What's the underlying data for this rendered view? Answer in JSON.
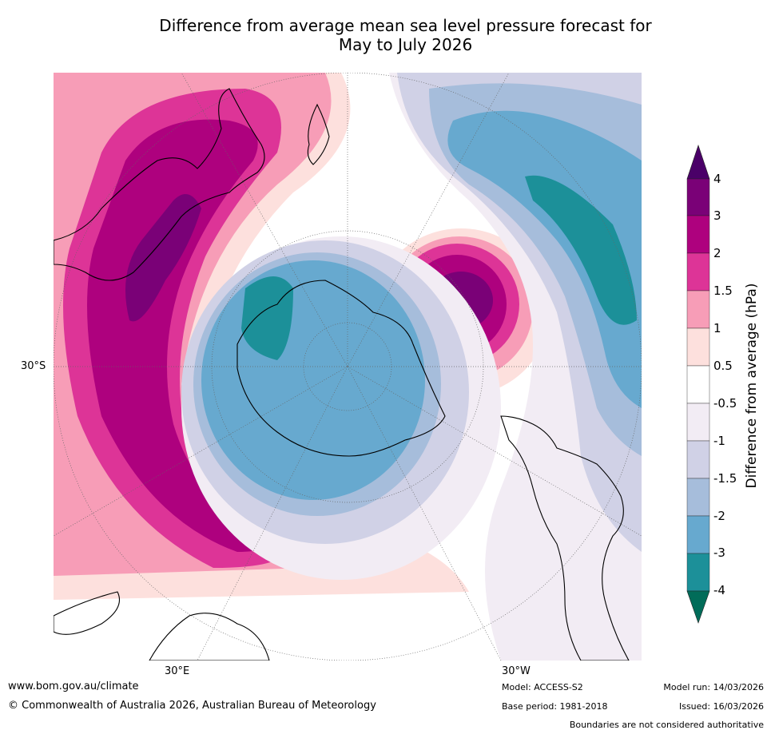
{
  "title_line1": "Difference from average mean sea level pressure forecast for",
  "title_line2": "May to July 2026",
  "lat_label": "30°S",
  "lon_label_east": "30°E",
  "lon_label_west": "30°W",
  "colorbar": {
    "label": "Difference from average (hPa)",
    "ticks": [
      "4",
      "3",
      "2",
      "1.5",
      "1",
      "0.5",
      "-0.5",
      "-1",
      "-1.5",
      "-2",
      "-3",
      "-4"
    ],
    "colors": {
      "above_4": "#4a0068",
      "3_to_4": "#7a0177",
      "2_to_3": "#ae017e",
      "1.5_to_2": "#dd3497",
      "1_to_1.5": "#f79db7",
      "0.5_to_1": "#fde0dd",
      "neutral": "#ffffff",
      "m1_to_m0.5": "#f2ecf4",
      "m1.5_to_m1": "#d0d1e6",
      "m2_to_m1.5": "#a6bddb",
      "m3_to_m2": "#67a9cf",
      "m4_to_m3": "#1c9099",
      "below_m4": "#016c59"
    }
  },
  "footer": {
    "website": "www.bom.gov.au/climate",
    "copyright": "© Commonwealth of Australia 2026, Australian Bureau of Meteorology",
    "model": "Model: ACCESS-S2",
    "base_period": "Base period: 1981-2018",
    "model_run": "Model run: 14/03/2026",
    "issued": "Issued: 16/03/2026",
    "disclaimer": "Boundaries are not considered authoritative"
  }
}
